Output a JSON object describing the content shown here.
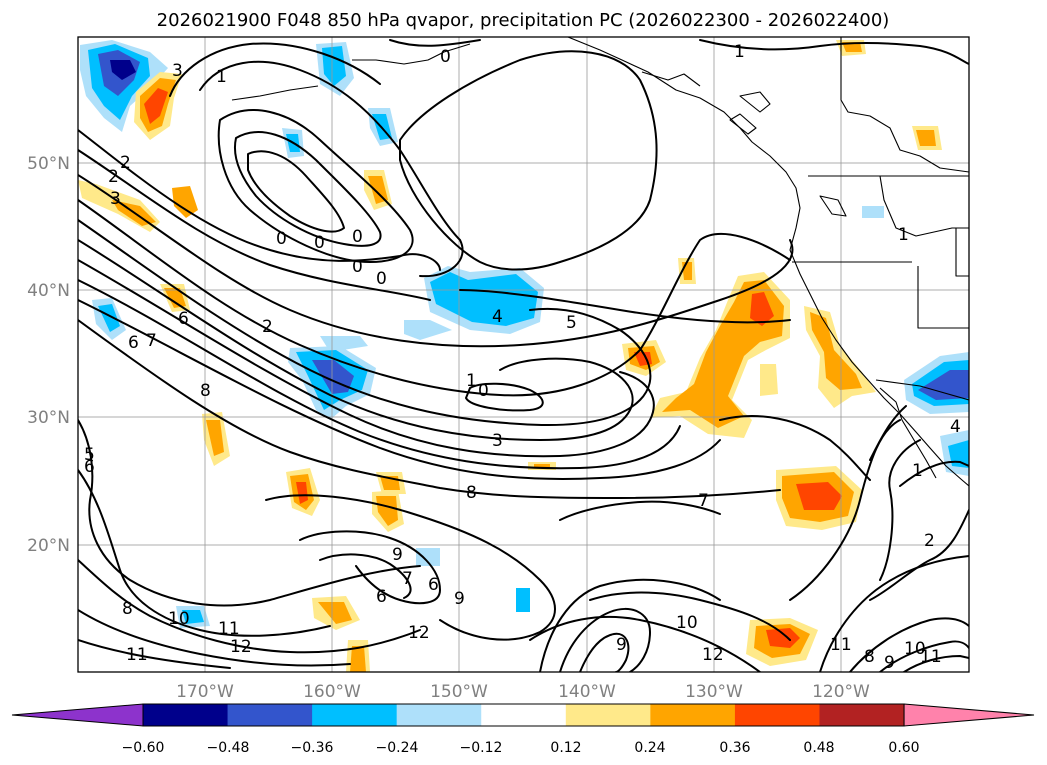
{
  "title": "2026021900 F048 850 hPa qvapor, precipitation PC (2026022300 - 2026022400)",
  "map": {
    "lon_ticks": [
      "170°W",
      "160°W",
      "150°W",
      "140°W",
      "130°W",
      "120°W"
    ],
    "lat_ticks": [
      "50°N",
      "40°N",
      "30°N",
      "20°N"
    ]
  },
  "colorbar": {
    "colors": [
      "#8d33cc",
      "#00008b",
      "#3355cc",
      "#00bfff",
      "#aee0fa",
      "#ffffff",
      "#ffe98a",
      "#ffa500",
      "#ff4500",
      "#b22222",
      "#ff82ab"
    ],
    "ticks": [
      "−0.60",
      "−0.48",
      "−0.36",
      "−0.24",
      "−0.12",
      "0.12",
      "0.24",
      "0.36",
      "0.48",
      "0.60"
    ]
  },
  "contour_labels": [
    {
      "text": "0"
    },
    {
      "text": "1"
    },
    {
      "text": "3"
    },
    {
      "text": "2"
    },
    {
      "text": "1"
    },
    {
      "text": "2"
    },
    {
      "text": "3"
    },
    {
      "text": "0"
    },
    {
      "text": "0"
    },
    {
      "text": "0"
    },
    {
      "text": "0"
    },
    {
      "text": "0"
    },
    {
      "text": "6"
    },
    {
      "text": "7"
    },
    {
      "text": "6"
    },
    {
      "text": "8"
    },
    {
      "text": "2"
    },
    {
      "text": "4"
    },
    {
      "text": "5"
    },
    {
      "text": "1"
    },
    {
      "text": "0"
    },
    {
      "text": "3"
    },
    {
      "text": "5"
    },
    {
      "text": "6"
    },
    {
      "text": "8"
    },
    {
      "text": "7"
    },
    {
      "text": "9"
    },
    {
      "text": "7"
    },
    {
      "text": "6"
    },
    {
      "text": "6"
    },
    {
      "text": "9"
    },
    {
      "text": "8"
    },
    {
      "text": "10"
    },
    {
      "text": "11"
    },
    {
      "text": "12"
    },
    {
      "text": "11"
    },
    {
      "text": "12"
    },
    {
      "text": "9"
    },
    {
      "text": "10"
    },
    {
      "text": "12"
    },
    {
      "text": "11"
    },
    {
      "text": "8"
    },
    {
      "text": "9"
    },
    {
      "text": "10"
    },
    {
      "text": "11"
    },
    {
      "text": "2"
    },
    {
      "text": "1"
    },
    {
      "text": "4"
    },
    {
      "text": "1"
    }
  ]
}
